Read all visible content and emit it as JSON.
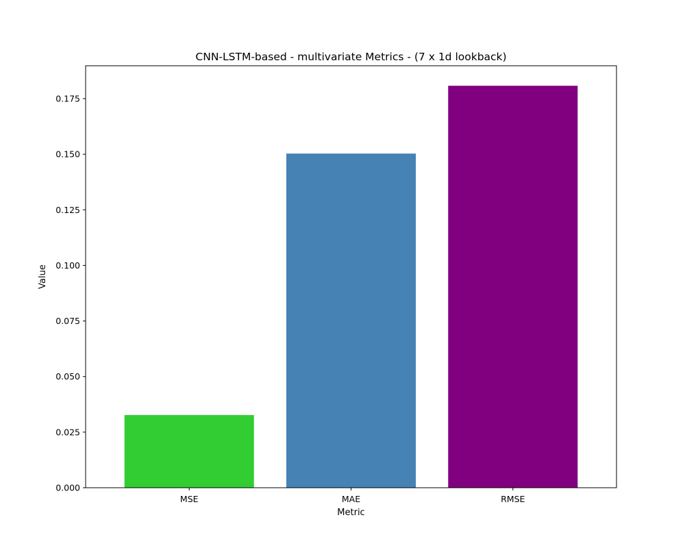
{
  "chart_data": {
    "type": "bar",
    "title": "CNN-LSTM-based - multivariate Metrics - (7 x 1d lookback)",
    "xlabel": "Metric",
    "ylabel": "Value",
    "categories": [
      "MSE",
      "MAE",
      "RMSE"
    ],
    "values": [
      0.0327,
      0.1503,
      0.1808
    ],
    "colors": [
      "#32cd32",
      "#4682b4",
      "#800080"
    ],
    "ylim": [
      0,
      0.1898
    ],
    "yticks": [
      0.0,
      0.025,
      0.05,
      0.075,
      0.1,
      0.125,
      0.15,
      0.175
    ],
    "ytick_labels": [
      "0.000",
      "0.025",
      "0.050",
      "0.075",
      "0.100",
      "0.125",
      "0.150",
      "0.175"
    ],
    "grid": false,
    "legend": false
  }
}
